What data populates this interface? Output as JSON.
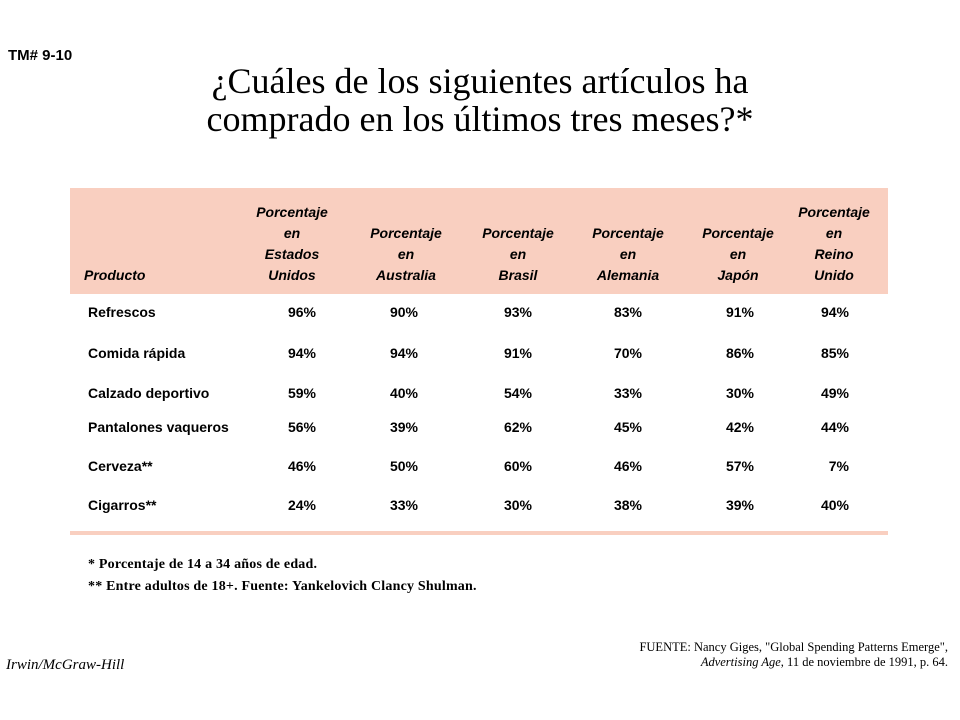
{
  "tm_label": "TM# 9-10",
  "title": {
    "line1": "¿Cuáles de los siguientes artículos ha",
    "line2": "comprado en los últimos tres meses?*"
  },
  "table": {
    "headers": {
      "product": "Producto",
      "us": [
        "Porcentaje",
        "en",
        "Estados",
        "Unidos"
      ],
      "au": [
        "Porcentaje",
        "en",
        "Australia"
      ],
      "br": [
        "Porcentaje",
        "en",
        "Brasil"
      ],
      "de": [
        "Porcentaje",
        "en",
        "Alemania"
      ],
      "jp": [
        "Porcentaje",
        "en",
        "Japón"
      ],
      "uk": [
        "Porcentaje",
        "en",
        "Reino",
        "Unido"
      ]
    },
    "rows": [
      {
        "product": "Refrescos",
        "us": "96%",
        "au": "90%",
        "br": "93%",
        "de": "83%",
        "jp": "91%",
        "uk": "94%"
      },
      {
        "product": "Comida rápida",
        "us": "94%",
        "au": "94%",
        "br": "91%",
        "de": "70%",
        "jp": "86%",
        "uk": "85%"
      },
      {
        "product": "Calzado deportivo",
        "us": "59%",
        "au": "40%",
        "br": "54%",
        "de": "33%",
        "jp": "30%",
        "uk": "49%"
      },
      {
        "product": "Pantalones vaqueros",
        "us": "56%",
        "au": "39%",
        "br": "62%",
        "de": "45%",
        "jp": "42%",
        "uk": "44%"
      },
      {
        "product": "Cerveza**",
        "us": "46%",
        "au": "50%",
        "br": "60%",
        "de": "46%",
        "jp": "57%",
        "uk": "7%"
      },
      {
        "product": "Cigarros**",
        "us": "24%",
        "au": "33%",
        "br": "30%",
        "de": "38%",
        "jp": "39%",
        "uk": "40%"
      }
    ],
    "header_color": "#f9cfc0"
  },
  "footnotes": {
    "note1": "* Porcentaje de 14 a 34 años de edad.",
    "note2": "** Entre adultos de 18+. Fuente: Yankelovich Clancy Shulman."
  },
  "publisher": "Irwin/McGraw-Hill",
  "source": {
    "line1": "FUENTE: Nancy  Giges, \"Global  Spending Patterns  Emerge\",",
    "journal": "Advertising  Age",
    "line2_rest": ", 11 de noviembre  de 1991, p. 64."
  }
}
